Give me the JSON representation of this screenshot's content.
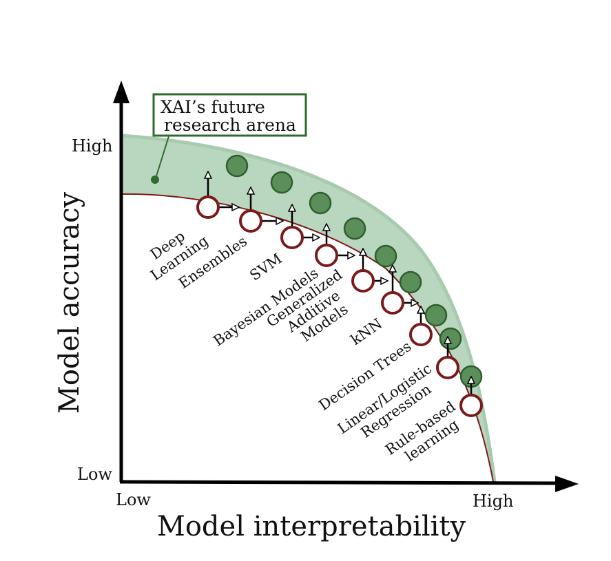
{
  "axes": {
    "y_title": "Model accuracy",
    "x_title": "Model interpretability",
    "y_high": "High",
    "y_low": "Low",
    "x_low": "Low",
    "x_high": "High"
  },
  "callout": {
    "line1": "XAI’s future",
    "line2": "research arena"
  },
  "models": [
    {
      "lines": [
        "Deep",
        "Learning"
      ]
    },
    {
      "lines": [
        "Ensembles"
      ]
    },
    {
      "lines": [
        "SVM"
      ]
    },
    {
      "lines": [
        "Bayesian Models"
      ]
    },
    {
      "lines": [
        "Generalized",
        "Additive",
        "Models"
      ]
    },
    {
      "lines": [
        "kNN"
      ]
    },
    {
      "lines": [
        "Decision Trees"
      ]
    },
    {
      "lines": [
        "Linear/Logistic",
        "Regression"
      ]
    },
    {
      "lines": [
        "Rule-based",
        "learning"
      ]
    }
  ],
  "colors": {
    "arena_fill": "#b9d6be",
    "frontier_curve": "#7a1a1a",
    "model_ring": "#7a1a1a",
    "future_point": "#5a8f5a",
    "future_point_stroke": "#2e5e2e",
    "callout_border": "#2e6b2e"
  }
}
